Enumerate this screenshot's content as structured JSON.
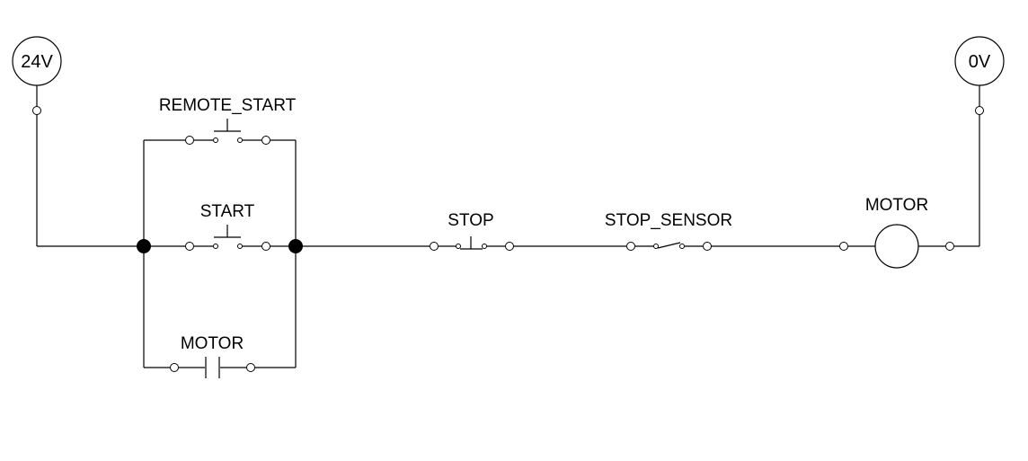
{
  "terminals": {
    "supply": {
      "label": "24V"
    },
    "ground": {
      "label": "0V"
    }
  },
  "components": {
    "remote_start": {
      "label": "REMOTE_START"
    },
    "start": {
      "label": "START"
    },
    "motor_contact": {
      "label": "MOTOR"
    },
    "stop": {
      "label": "STOP"
    },
    "stop_sensor": {
      "label": "STOP_SENSOR"
    },
    "motor": {
      "label": "MOTOR"
    }
  }
}
